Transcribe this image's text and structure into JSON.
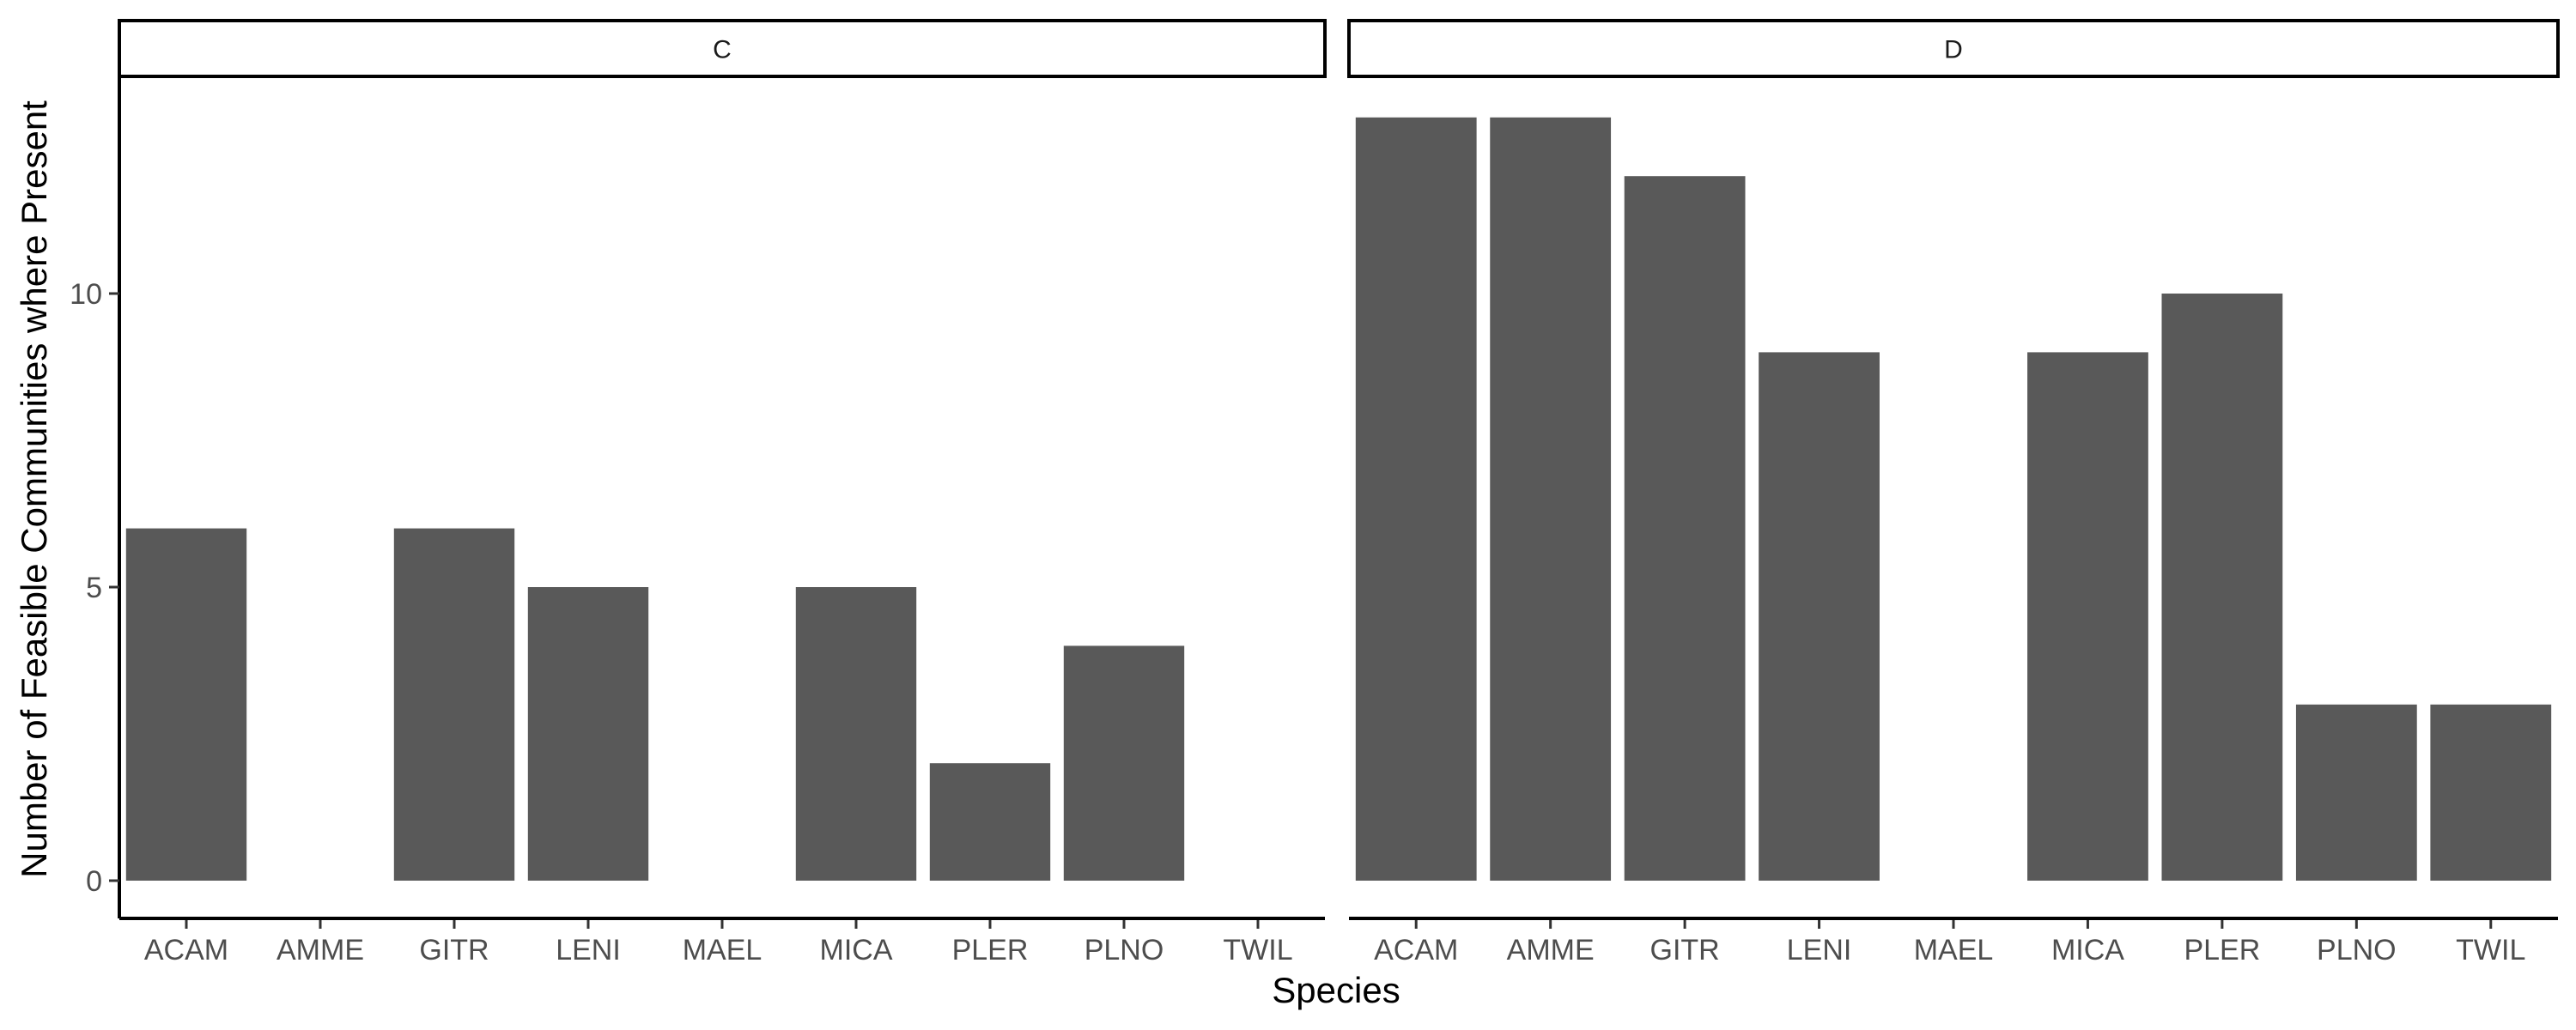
{
  "chart_data": {
    "type": "bar",
    "xlabel": "Species",
    "ylabel": "Number of Feasible Communities where Present",
    "ylim": [
      0,
      13.65
    ],
    "yticks": [
      0,
      5,
      10
    ],
    "grid": false,
    "bar_color": "#595959",
    "categories": [
      "ACAM",
      "AMME",
      "GITR",
      "LENI",
      "MAEL",
      "MICA",
      "PLER",
      "PLNO",
      "TWIL"
    ],
    "panels": [
      {
        "label": "C",
        "values": [
          6,
          0,
          6,
          5,
          0,
          5,
          2,
          4,
          0
        ]
      },
      {
        "label": "D",
        "values": [
          13,
          13,
          12,
          9,
          0,
          9,
          10,
          3,
          3
        ]
      }
    ]
  }
}
